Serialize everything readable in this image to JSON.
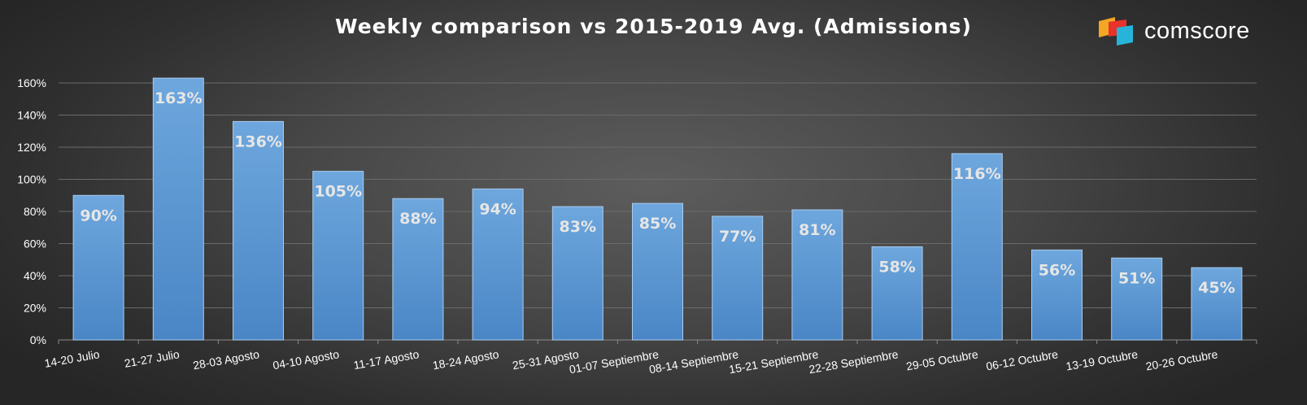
{
  "title": "Weekly comparison vs 2015-2019 Avg. (Admissions)",
  "brand": {
    "name": "comscore",
    "colors": [
      "#f5a623",
      "#e8322b",
      "#27b4d9"
    ]
  },
  "colors": {
    "bar_top": "#6ea7dd",
    "bar_bottom": "#4a86c6",
    "grid": "#6b6b6b",
    "text": "#ffffff"
  },
  "chart_data": {
    "type": "bar",
    "title": "Weekly comparison vs 2015-2019 Avg. (Admissions)",
    "xlabel": "",
    "ylabel": "",
    "ylim": [
      0,
      160
    ],
    "yticks": [
      0,
      20,
      40,
      60,
      80,
      100,
      120,
      140,
      160
    ],
    "ytick_labels": [
      "0%",
      "20%",
      "40%",
      "60%",
      "80%",
      "100%",
      "120%",
      "140%",
      "160%"
    ],
    "grid": true,
    "categories": [
      "14-20 Julio",
      "21-27 Julio",
      "28-03 Agosto",
      "04-10 Agosto",
      "11-17 Agosto",
      "18-24 Agosto",
      "25-31 Agosto",
      "01-07 Septiembre",
      "08-14 Septiembre",
      "15-21 Septiembre",
      "22-28 Septiembre",
      "29-05 Octubre",
      "06-12 Octubre",
      "13-19 Octubre",
      "20-26 Octubre"
    ],
    "values": [
      90,
      163,
      136,
      105,
      88,
      94,
      83,
      85,
      77,
      81,
      58,
      116,
      56,
      51,
      45
    ],
    "data_labels": [
      "90%",
      "163%",
      "136%",
      "105%",
      "88%",
      "94%",
      "83%",
      "85%",
      "77%",
      "81%",
      "58%",
      "116%",
      "56%",
      "51%",
      "45%"
    ]
  }
}
